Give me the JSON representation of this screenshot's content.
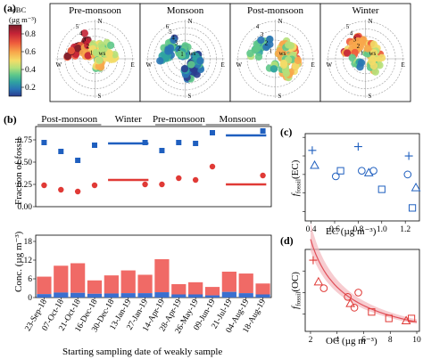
{
  "panel_labels": {
    "a": "(a)",
    "b": "(b)",
    "c": "(c)",
    "d": "(d)"
  },
  "colors": {
    "fossil_ec_marker": "#1f5fbf",
    "fossil_oc_marker": "#e03a36",
    "conc_oc_bar": "#f06a66",
    "conc_ec_bar": "#3a6fcf",
    "fit_line": "#e0505a",
    "fit_band": "#f3b7bc"
  },
  "chart_data": [
    {
      "id": "a",
      "type": "polar-scatter",
      "colorbar": {
        "label_line1": "eBC",
        "label_line2": "(µg m⁻³)",
        "ticks": [
          "0.8",
          "0.6",
          "0.4",
          "0.2"
        ],
        "range": [
          0.1,
          0.9
        ],
        "colors": [
          "#7a1c2a",
          "#c42336",
          "#ee5a3c",
          "#f8a74b",
          "#f3dc68",
          "#b5e07a",
          "#5fc88a",
          "#2fa3a1",
          "#2a74b5",
          "#2b3d8f"
        ]
      },
      "compass": [
        "N",
        "E",
        "S",
        "W"
      ],
      "ws_label": "ws",
      "rings": [
        "1",
        "2",
        "3",
        "4",
        "5",
        "6"
      ],
      "panels": [
        {
          "title": "Pre-monsoon",
          "rings": [
            "1",
            "2",
            "3",
            "4",
            "5"
          ]
        },
        {
          "title": "Monsoon",
          "rings": [
            "1",
            "2",
            "3",
            "4",
            "5",
            "6"
          ]
        },
        {
          "title": "Post-monsoon",
          "rings": [
            "1",
            "2",
            "3",
            "4"
          ]
        },
        {
          "title": "Winter",
          "rings": [
            "1",
            "2",
            "3",
            "4",
            "5"
          ]
        }
      ]
    },
    {
      "id": "b-top",
      "type": "scatter",
      "seasons": [
        "Post-monsoon",
        "Winter",
        "Pre-monsoon",
        "Monsoon"
      ],
      "ylabel": "Fraction of fossil",
      "ylim": [
        0,
        0.9
      ],
      "yticks": [
        "0.00",
        "0.25",
        "0.50",
        "0.75"
      ],
      "categories": [
        "23-Sep-18",
        "07-Oct-18",
        "21-Oct-18",
        "16-Dec-18",
        "30-Dec-18",
        "13-Jan-19",
        "27-Jan-19",
        "14-Apr-19",
        "28-Apr-19",
        "26-May-19",
        "09-Jun-19",
        "21-Jul-19",
        "04-Aug-19",
        "18-Aug-19"
      ],
      "series": [
        {
          "values": [
            0.72,
            0.62,
            0.52,
            0.69,
            null,
            null,
            0.72,
            0.63,
            0.72,
            0.71,
            0.83,
            null,
            null,
            0.85
          ]
        },
        {
          "values": [
            0.24,
            0.19,
            0.17,
            0.24,
            null,
            null,
            0.25,
            0.25,
            0.32,
            0.3,
            0.45,
            null,
            null,
            0.35
          ]
        }
      ],
      "segments": [
        {
          "from": 4,
          "to": 6,
          "ec": 0.71,
          "oc": 0.3
        },
        {
          "from": 11,
          "to": 13,
          "ec": 0.8,
          "oc": 0.25
        }
      ]
    },
    {
      "id": "b-bottom",
      "type": "bar",
      "ylabel": "Conc. (µg m⁻³)",
      "ylim": [
        0,
        20
      ],
      "yticks": [
        "0",
        "6",
        "12",
        "18"
      ],
      "xlabel": "Starting sampling date of weakly sample",
      "categories": [
        "23-Sep-18",
        "07-Oct-18",
        "21-Oct-18",
        "16-Dec-18",
        "30-Dec-18",
        "13-Jan-19",
        "27-Jan-19",
        "14-Apr-19",
        "28-Apr-19",
        "26-May-19",
        "09-Jun-19",
        "21-Jul-19",
        "04-Aug-19",
        "18-Aug-19"
      ],
      "series": [
        {
          "values": [
            5.6,
            8.6,
            9.5,
            4.3,
            5.8,
            7.3,
            5.9,
            10.6,
            3.3,
            3.9,
            2.7,
            6.5,
            6.3,
            3.5
          ]
        },
        {
          "values": [
            1.1,
            1.6,
            1.5,
            1.2,
            1.3,
            1.4,
            1.4,
            1.7,
            1.0,
            1.0,
            0.7,
            1.8,
            1.4,
            1.0
          ]
        }
      ]
    },
    {
      "id": "c",
      "type": "scatter",
      "ylabel": "f_fossil(EC)",
      "xlabel": "EC (µg m⁻³)",
      "xlim": [
        0.35,
        1.32
      ],
      "ylim": [
        0.45,
        0.92
      ],
      "xticks": [
        "0.4",
        "0.6",
        "0.8",
        "1.0",
        "1.2"
      ],
      "points": [
        {
          "x": 0.41,
          "y": 0.83,
          "marker": "plus"
        },
        {
          "x": 0.8,
          "y": 0.85,
          "marker": "plus"
        },
        {
          "x": 1.23,
          "y": 0.8,
          "marker": "plus"
        },
        {
          "x": 0.43,
          "y": 0.75,
          "marker": "triangle"
        },
        {
          "x": 0.89,
          "y": 0.71,
          "marker": "triangle"
        },
        {
          "x": 1.29,
          "y": 0.63,
          "marker": "triangle"
        },
        {
          "x": 0.65,
          "y": 0.72,
          "marker": "square"
        },
        {
          "x": 1.0,
          "y": 0.62,
          "marker": "square"
        },
        {
          "x": 1.26,
          "y": 0.52,
          "marker": "square"
        },
        {
          "x": 0.61,
          "y": 0.69,
          "marker": "circle"
        },
        {
          "x": 0.83,
          "y": 0.72,
          "marker": "circle"
        },
        {
          "x": 0.93,
          "y": 0.72,
          "marker": "circle"
        },
        {
          "x": 1.22,
          "y": 0.7,
          "marker": "circle"
        }
      ]
    },
    {
      "id": "d",
      "type": "scatter",
      "ylabel": "f_fossil(OC)",
      "xlabel": "OC (µg m⁻³)",
      "xlim": [
        1.6,
        10.2
      ],
      "ylim": [
        0.12,
        0.5
      ],
      "xticks": [
        "2",
        "4",
        "6",
        "8",
        "10"
      ],
      "points": [
        {
          "x": 2.2,
          "y": 0.45,
          "marker": "plus"
        },
        {
          "x": 2.6,
          "y": 0.35,
          "marker": "triangle"
        },
        {
          "x": 3.0,
          "y": 0.32,
          "marker": "circle"
        },
        {
          "x": 4.8,
          "y": 0.28,
          "marker": "circle"
        },
        {
          "x": 5.0,
          "y": 0.25,
          "marker": "triangle"
        },
        {
          "x": 5.3,
          "y": 0.23,
          "marker": "circle"
        },
        {
          "x": 5.6,
          "y": 0.3,
          "marker": "circle"
        },
        {
          "x": 6.6,
          "y": 0.21,
          "marker": "square"
        },
        {
          "x": 7.9,
          "y": 0.18,
          "marker": "square"
        },
        {
          "x": 9.2,
          "y": 0.17,
          "marker": "triangle"
        },
        {
          "x": 9.6,
          "y": 0.18,
          "marker": "square"
        }
      ],
      "fit": {
        "a": 0.92,
        "b": -0.75
      }
    }
  ]
}
